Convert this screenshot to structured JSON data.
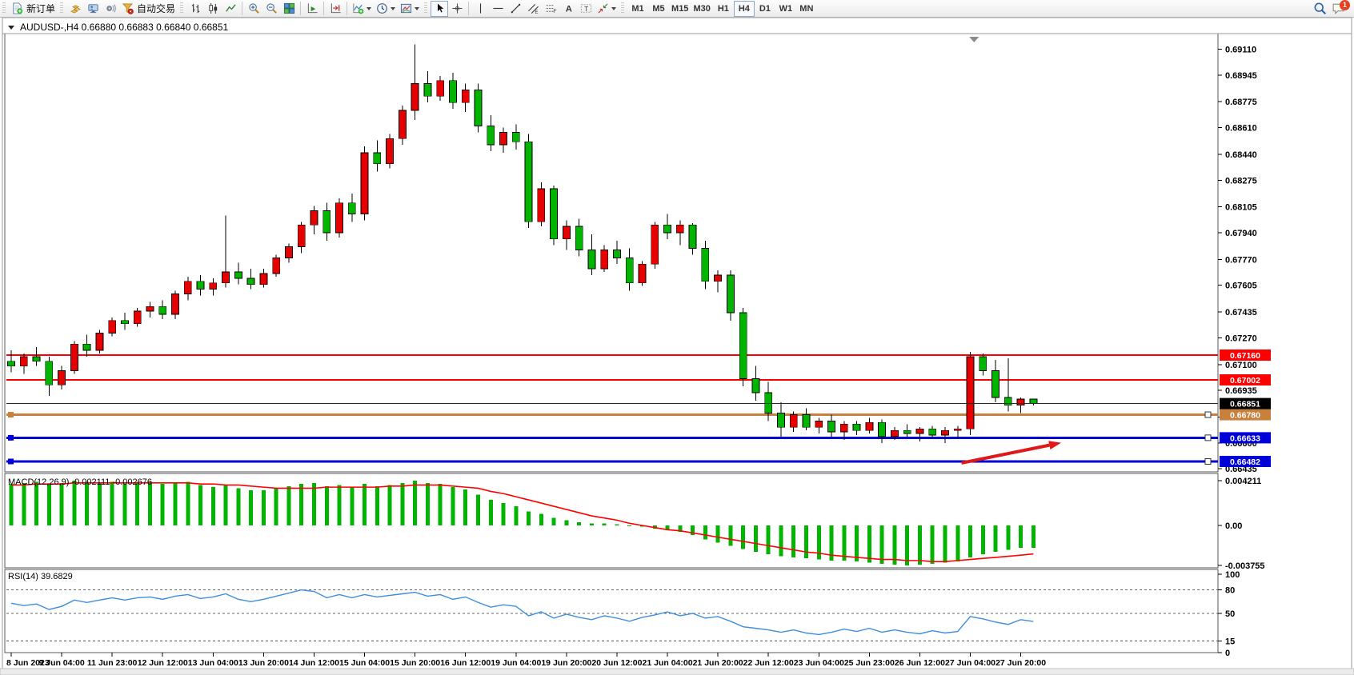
{
  "app": {
    "toolbar": {
      "new_order_label": "新订单",
      "auto_trading_label": "自动交易",
      "icon_names": [
        "new-order-icon",
        "market-watch-icon",
        "navigator-icon",
        "signals-icon",
        "auto-trading-icon",
        "bar-chart-icon",
        "candlestick-chart-icon",
        "line-chart-icon",
        "zoom-in-icon",
        "zoom-out-icon",
        "tile-windows-icon",
        "auto-scroll-icon",
        "chart-shift-icon",
        "indicators-icon",
        "periods-icon",
        "templates-icon",
        "cursor-icon",
        "crosshair-icon",
        "vertical-line-icon",
        "horizontal-line-icon",
        "trendline-icon",
        "equidistant-channel-icon",
        "fibonacci-icon",
        "text-icon",
        "text-label-icon",
        "arrows-icon",
        "search-icon",
        "chat-icon"
      ],
      "timeframes": [
        "M1",
        "M5",
        "M15",
        "M30",
        "H1",
        "H4",
        "D1",
        "W1",
        "MN"
      ],
      "active_timeframe": "H4",
      "notification_badge": "1"
    }
  },
  "chart": {
    "title": {
      "text": "AUDUSD-,H4  0.66880 0.66883 0.66840 0.66851",
      "symbol_timeframe": "AUDUSD-,H4",
      "open": "0.66880",
      "high": "0.66883",
      "low": "0.66840",
      "close": "0.66851"
    }
  },
  "chart_data": {
    "type": "candlestick",
    "symbol": "AUDUSD-",
    "timeframe": "H4",
    "note_color_convention": "red = bullish (up), green = bearish (down)",
    "ylim": [
      0.6642,
      0.6921
    ],
    "price_axis_ticks": [
      "0.69110",
      "0.68945",
      "0.68775",
      "0.68610",
      "0.68440",
      "0.68275",
      "0.68105",
      "0.67940",
      "0.67770",
      "0.67605",
      "0.67435",
      "0.67270",
      "0.67100",
      "0.66935",
      "0.66765",
      "0.66600",
      "0.66435"
    ],
    "x_labels": [
      "8 Jun 2023",
      "9 Jun 04:00",
      "11 Jun 23:00",
      "12 Jun 12:00",
      "13 Jun 04:00",
      "13 Jun 20:00",
      "14 Jun 12:00",
      "15 Jun 04:00",
      "15 Jun 20:00",
      "16 Jun 12:00",
      "19 Jun 04:00",
      "19 Jun 20:00",
      "20 Jun 12:00",
      "21 Jun 04:00",
      "21 Jun 20:00",
      "22 Jun 12:00",
      "23 Jun 04:00",
      "25 Jun 23:00",
      "26 Jun 12:00",
      "27 Jun 04:00",
      "27 Jun 20:00"
    ],
    "x_label_every_n_bars": 4,
    "candles": [
      [
        0.6712,
        0.6719,
        0.6705,
        0.6709
      ],
      [
        0.6709,
        0.6717,
        0.6704,
        0.6715
      ],
      [
        0.6715,
        0.6721,
        0.6709,
        0.6712
      ],
      [
        0.6712,
        0.6715,
        0.669,
        0.6697
      ],
      [
        0.6697,
        0.6709,
        0.6694,
        0.6706
      ],
      [
        0.6706,
        0.6725,
        0.6704,
        0.6723
      ],
      [
        0.6723,
        0.6729,
        0.6715,
        0.6719
      ],
      [
        0.6719,
        0.6732,
        0.6717,
        0.673
      ],
      [
        0.673,
        0.674,
        0.6728,
        0.6738
      ],
      [
        0.6738,
        0.6743,
        0.6732,
        0.6736
      ],
      [
        0.6736,
        0.6746,
        0.6734,
        0.6744
      ],
      [
        0.6744,
        0.675,
        0.674,
        0.6747
      ],
      [
        0.6747,
        0.6751,
        0.6739,
        0.6742
      ],
      [
        0.6742,
        0.6757,
        0.6739,
        0.6755
      ],
      [
        0.6755,
        0.6766,
        0.6751,
        0.6763
      ],
      [
        0.6763,
        0.6767,
        0.6754,
        0.6758
      ],
      [
        0.6758,
        0.6765,
        0.6754,
        0.6762
      ],
      [
        0.6762,
        0.6805,
        0.6759,
        0.6769
      ],
      [
        0.6769,
        0.6775,
        0.6761,
        0.6765
      ],
      [
        0.6765,
        0.6771,
        0.6758,
        0.6761
      ],
      [
        0.6761,
        0.6771,
        0.6759,
        0.6768
      ],
      [
        0.6768,
        0.678,
        0.6766,
        0.6778
      ],
      [
        0.6778,
        0.6787,
        0.6775,
        0.6785
      ],
      [
        0.6785,
        0.6801,
        0.6781,
        0.6799
      ],
      [
        0.6799,
        0.6811,
        0.6793,
        0.6808
      ],
      [
        0.6808,
        0.6813,
        0.6789,
        0.6794
      ],
      [
        0.6794,
        0.6816,
        0.6791,
        0.6813
      ],
      [
        0.6813,
        0.6819,
        0.6801,
        0.6806
      ],
      [
        0.6806,
        0.6849,
        0.6802,
        0.6845
      ],
      [
        0.6845,
        0.6853,
        0.6833,
        0.6838
      ],
      [
        0.6838,
        0.6857,
        0.6835,
        0.6854
      ],
      [
        0.6854,
        0.6875,
        0.685,
        0.6872
      ],
      [
        0.6872,
        0.6914,
        0.6866,
        0.6889
      ],
      [
        0.6889,
        0.6897,
        0.6877,
        0.6881
      ],
      [
        0.6881,
        0.6894,
        0.6878,
        0.6891
      ],
      [
        0.6891,
        0.6896,
        0.6873,
        0.6877
      ],
      [
        0.6877,
        0.6889,
        0.6871,
        0.6885
      ],
      [
        0.6885,
        0.6889,
        0.6858,
        0.6862
      ],
      [
        0.6862,
        0.6869,
        0.6846,
        0.685
      ],
      [
        0.685,
        0.6861,
        0.6845,
        0.6858
      ],
      [
        0.6858,
        0.6863,
        0.6847,
        0.6852
      ],
      [
        0.6852,
        0.6857,
        0.6797,
        0.6801
      ],
      [
        0.6801,
        0.6826,
        0.6798,
        0.6822
      ],
      [
        0.6822,
        0.6824,
        0.6786,
        0.679
      ],
      [
        0.679,
        0.6802,
        0.6783,
        0.6798
      ],
      [
        0.6798,
        0.6803,
        0.6779,
        0.6783
      ],
      [
        0.6783,
        0.6793,
        0.6767,
        0.6771
      ],
      [
        0.6771,
        0.6786,
        0.6769,
        0.6783
      ],
      [
        0.6783,
        0.6789,
        0.6774,
        0.6778
      ],
      [
        0.6778,
        0.6784,
        0.6757,
        0.6762
      ],
      [
        0.6762,
        0.6776,
        0.676,
        0.6774
      ],
      [
        0.6774,
        0.6801,
        0.6771,
        0.6799
      ],
      [
        0.6799,
        0.6806,
        0.679,
        0.6794
      ],
      [
        0.6794,
        0.6802,
        0.6786,
        0.6799
      ],
      [
        0.6799,
        0.68,
        0.678,
        0.6784
      ],
      [
        0.6784,
        0.6789,
        0.6758,
        0.6763
      ],
      [
        0.6763,
        0.677,
        0.6756,
        0.6767
      ],
      [
        0.6767,
        0.677,
        0.6738,
        0.6743
      ],
      [
        0.6743,
        0.6746,
        0.6696,
        0.6701
      ],
      [
        0.6701,
        0.6709,
        0.6687,
        0.6692
      ],
      [
        0.6692,
        0.6699,
        0.6674,
        0.6679
      ],
      [
        0.6679,
        0.6686,
        0.6664,
        0.667
      ],
      [
        0.667,
        0.668,
        0.6667,
        0.6678
      ],
      [
        0.6678,
        0.6682,
        0.6668,
        0.667
      ],
      [
        0.667,
        0.6676,
        0.6666,
        0.6674
      ],
      [
        0.6674,
        0.6678,
        0.6664,
        0.6667
      ],
      [
        0.6667,
        0.6674,
        0.6662,
        0.6672
      ],
      [
        0.6672,
        0.6674,
        0.6665,
        0.6668
      ],
      [
        0.6668,
        0.6676,
        0.6666,
        0.6673
      ],
      [
        0.6673,
        0.6675,
        0.666,
        0.6664
      ],
      [
        0.6664,
        0.667,
        0.6662,
        0.6668
      ],
      [
        0.6668,
        0.6672,
        0.6664,
        0.6666
      ],
      [
        0.6666,
        0.667,
        0.6661,
        0.6669
      ],
      [
        0.6669,
        0.6671,
        0.6663,
        0.6665
      ],
      [
        0.6665,
        0.667,
        0.666,
        0.6668
      ],
      [
        0.6668,
        0.6671,
        0.6663,
        0.6669
      ],
      [
        0.6669,
        0.6718,
        0.6665,
        0.6715
      ],
      [
        0.6715,
        0.6717,
        0.6703,
        0.6706
      ],
      [
        0.6706,
        0.6713,
        0.6686,
        0.6689
      ],
      [
        0.6689,
        0.6714,
        0.668,
        0.6684
      ],
      [
        0.6684,
        0.6689,
        0.6679,
        0.6688
      ],
      [
        0.6688,
        0.66883,
        0.6684,
        0.66851
      ]
    ],
    "horizontal_lines": [
      {
        "price": 0.6716,
        "label": "0.67160",
        "color": "#FF0000",
        "width": 1.6,
        "selected": false
      },
      {
        "price": 0.67002,
        "label": "0.67002",
        "color": "#FF0000",
        "width": 1.6,
        "selected": false
      },
      {
        "price": 0.6678,
        "label": "0.66780",
        "color": "#C8813C",
        "width": 3,
        "selected": true
      },
      {
        "price": 0.66633,
        "label": "0.66633",
        "color": "#0000D8",
        "width": 3,
        "selected": true
      },
      {
        "price": 0.66482,
        "label": "0.66482",
        "color": "#0000D8",
        "width": 3,
        "selected": true
      }
    ],
    "current_price": {
      "value": 0.66851,
      "label": "0.66851",
      "line_color": "#2a2a2a",
      "badge_bg": "#000000"
    },
    "arrow": {
      "from_bar": 75.3,
      "from_price": 0.66472,
      "to_bar": 83.2,
      "to_price": 0.66601,
      "color": "#E01818"
    },
    "shift_marker_bar": 76.3,
    "indicators": [
      {
        "name": "MACD",
        "label": "MACD(12,26,9) -0.002111 -0.002676",
        "params": [
          12,
          26,
          9
        ],
        "main_value": -0.002111,
        "signal_value": -0.002676,
        "axis_ticks": [
          "0.004211",
          "0.00",
          "-0.003755"
        ],
        "axis_values": [
          0.004211,
          0,
          -0.003755
        ],
        "hist_color": "#00B400",
        "signal_color": "#FF0000",
        "histogram": [
          0.0039,
          0.004,
          0.0041,
          0.0039,
          0.004,
          0.0042,
          0.0041,
          0.004,
          0.0041,
          0.0039,
          0.004,
          0.0041,
          0.0039,
          0.004,
          0.0041,
          0.0038,
          0.0036,
          0.0038,
          0.0035,
          0.0033,
          0.0033,
          0.0035,
          0.0037,
          0.0039,
          0.004,
          0.0037,
          0.0038,
          0.0036,
          0.0039,
          0.0037,
          0.0038,
          0.004,
          0.0042,
          0.004,
          0.0039,
          0.0036,
          0.0034,
          0.0029,
          0.0024,
          0.0021,
          0.0018,
          0.0013,
          0.0011,
          0.0007,
          0.0005,
          0.0003,
          0.0002,
          0.0002,
          0.0001,
          0.0,
          -0.0001,
          -0.0003,
          -0.0004,
          -0.0006,
          -0.0009,
          -0.0013,
          -0.0016,
          -0.0019,
          -0.0022,
          -0.0025,
          -0.0027,
          -0.0029,
          -0.003,
          -0.0031,
          -0.0032,
          -0.0033,
          -0.0033,
          -0.0034,
          -0.0035,
          -0.0036,
          -0.0037,
          -0.00375,
          -0.0037,
          -0.0036,
          -0.0035,
          -0.0034,
          -0.003,
          -0.0027,
          -0.0025,
          -0.0023,
          -0.0021,
          -0.002111
        ],
        "signal": [
          0.0038,
          0.0038,
          0.0039,
          0.0039,
          0.0039,
          0.004,
          0.004,
          0.004,
          0.004,
          0.004,
          0.004,
          0.004,
          0.004,
          0.004,
          0.004,
          0.0039,
          0.0039,
          0.0038,
          0.0038,
          0.0037,
          0.0036,
          0.0035,
          0.0035,
          0.0035,
          0.0035,
          0.0036,
          0.0036,
          0.0036,
          0.0036,
          0.0036,
          0.0037,
          0.0037,
          0.0038,
          0.0038,
          0.0038,
          0.0037,
          0.0036,
          0.0035,
          0.0032,
          0.003,
          0.0027,
          0.0024,
          0.0021,
          0.0018,
          0.0015,
          0.0012,
          0.0009,
          0.0007,
          0.0005,
          0.0002,
          0.0,
          -0.0002,
          -0.0004,
          -0.0005,
          -0.0007,
          -0.0009,
          -0.0011,
          -0.0013,
          -0.0015,
          -0.0017,
          -0.0019,
          -0.0021,
          -0.0023,
          -0.0025,
          -0.0026,
          -0.0028,
          -0.0029,
          -0.003,
          -0.0031,
          -0.0032,
          -0.0032,
          -0.0033,
          -0.0033,
          -0.0034,
          -0.0034,
          -0.0033,
          -0.0032,
          -0.0031,
          -0.003,
          -0.0029,
          -0.0028,
          -0.002676
        ]
      },
      {
        "name": "RSI",
        "label": "RSI(14) 39.6829",
        "period": 14,
        "current": 39.6829,
        "levels": [
          80,
          50,
          15
        ],
        "axis_ticks": [
          "100",
          "80",
          "50",
          "15",
          "0"
        ],
        "axis_values": [
          100,
          80,
          50,
          15,
          0
        ],
        "line_color": "#3E8EDE",
        "values": [
          63,
          60,
          62,
          55,
          59,
          67,
          64,
          67,
          70,
          67,
          70,
          71,
          68,
          72,
          74,
          69,
          71,
          75,
          68,
          65,
          68,
          72,
          76,
          80,
          78,
          70,
          74,
          70,
          74,
          71,
          73,
          75,
          77,
          72,
          74,
          68,
          71,
          64,
          58,
          61,
          59,
          47,
          52,
          44,
          49,
          45,
          42,
          47,
          44,
          40,
          45,
          48,
          52,
          47,
          50,
          44,
          46,
          40,
          33,
          31,
          29,
          26,
          29,
          25,
          23,
          26,
          30,
          27,
          31,
          26,
          29,
          26,
          24,
          28,
          25,
          27,
          46,
          43,
          39,
          36,
          42,
          39.68
        ]
      }
    ],
    "colors": {
      "background": "#FFFFFF",
      "up_candle": "#E60000",
      "down_candle": "#00B400",
      "wick": "#000000",
      "axis_text": "#000000",
      "pane_border": "#5a5a5a"
    }
  }
}
